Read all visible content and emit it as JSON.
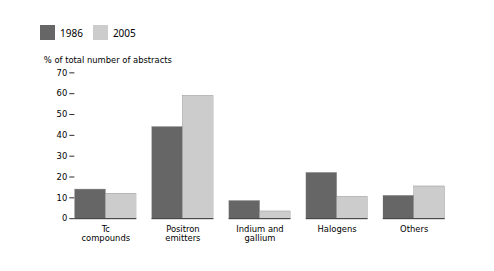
{
  "chart_data": {
    "type": "bar",
    "categories": [
      "Tc\ncompounds",
      "Positron\nemitters",
      "Indium and\ngallium",
      "Halogens",
      "Others"
    ],
    "series": [
      {
        "name": "1986",
        "color": "#666666",
        "values": [
          14,
          44,
          8.5,
          22,
          11
        ]
      },
      {
        "name": "2005",
        "color": "#cccccc",
        "values": [
          12,
          59,
          3.5,
          10.5,
          15.5
        ]
      }
    ],
    "ylabel": "% of total number of abstracts",
    "ylim": [
      0,
      70
    ],
    "yticks": [
      0,
      10,
      20,
      30,
      40,
      50,
      60,
      70
    ],
    "legend": "top",
    "grid": false
  }
}
